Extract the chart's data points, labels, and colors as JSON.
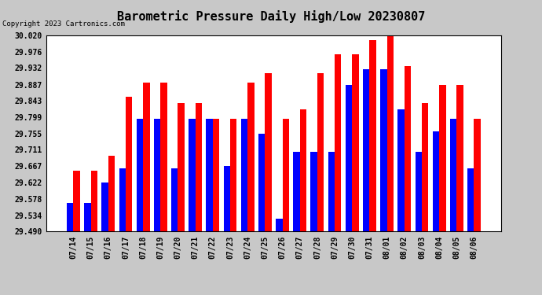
{
  "title": "Barometric Pressure Daily High/Low 20230807",
  "copyright": "Copyright 2023 Cartronics.com",
  "ylabel_values": [
    29.49,
    29.534,
    29.578,
    29.622,
    29.667,
    29.711,
    29.755,
    29.799,
    29.843,
    29.887,
    29.932,
    29.976,
    30.02
  ],
  "dates": [
    "07/14",
    "07/15",
    "07/16",
    "07/17",
    "07/18",
    "07/19",
    "07/20",
    "07/21",
    "07/22",
    "07/23",
    "07/24",
    "07/25",
    "07/26",
    "07/27",
    "07/28",
    "07/29",
    "07/30",
    "07/31",
    "08/01",
    "08/02",
    "08/03",
    "08/04",
    "08/05",
    "08/06"
  ],
  "low_values": [
    29.568,
    29.568,
    29.622,
    29.66,
    29.795,
    29.795,
    29.66,
    29.795,
    29.795,
    29.668,
    29.795,
    29.755,
    29.525,
    29.706,
    29.706,
    29.706,
    29.887,
    29.928,
    29.928,
    29.82,
    29.706,
    29.76,
    29.795,
    29.66
  ],
  "high_values": [
    29.655,
    29.655,
    29.695,
    29.855,
    29.893,
    29.893,
    29.838,
    29.838,
    29.795,
    29.795,
    29.893,
    29.918,
    29.795,
    29.82,
    29.918,
    29.968,
    29.968,
    30.008,
    30.018,
    29.938,
    29.838,
    29.887,
    29.887,
    29.795
  ],
  "low_color": "#0000ff",
  "high_color": "#ff0000",
  "bg_color": "#c8c8c8",
  "plot_bg_color": "#ffffff",
  "ylim": [
    29.49,
    30.02
  ],
  "bar_width": 0.38,
  "title_fontsize": 11,
  "copyright_fontsize": 6.5,
  "legend_fontsize": 8,
  "tick_fontsize": 7,
  "grid_color": "#ffffff",
  "grid_style": "--",
  "grid_lw": 1.0
}
